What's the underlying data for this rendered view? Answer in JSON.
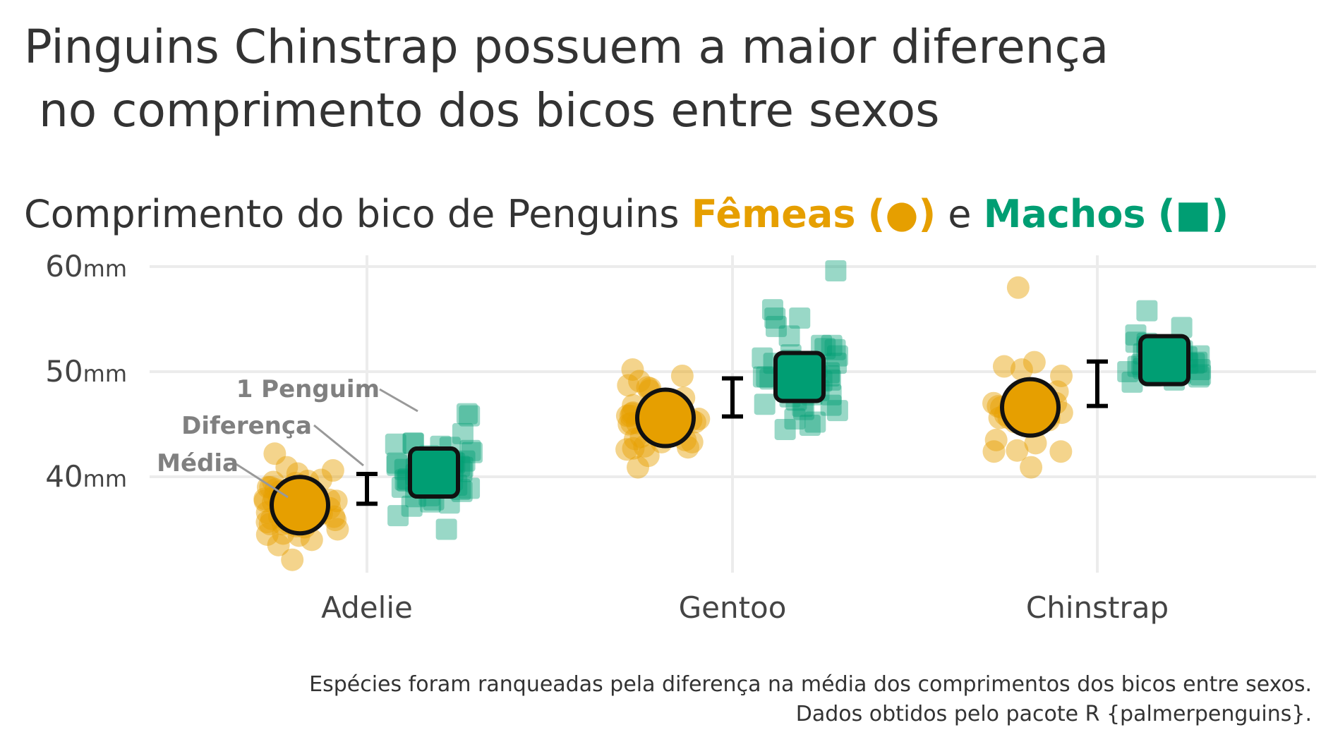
{
  "title_line1": "Pinguins Chinstrap possuem a maior diferença",
  "title_line2": " no comprimento dos bicos entre sexos",
  "subtitle": {
    "prefix": "Comprimento do bico de Penguins ",
    "female_label": "Fêmeas",
    "female_symbol": "(●)",
    "conj": " e ",
    "male_label": "Machos",
    "male_symbol": "(■)"
  },
  "caption_line1": "Espécies foram ranqueadas pela diferença na média dos comprimentos dos bicos entre sexos.",
  "caption_line2": "Dados obtidos pelo pacote R {palmerpenguins}.",
  "chart_data": {
    "type": "scatter",
    "categories": [
      "Adelie",
      "Gentoo",
      "Chinstrap"
    ],
    "ylim": [
      31,
      61
    ],
    "yticks": [
      40,
      50,
      60
    ],
    "ytick_unit": "mm",
    "grid": true,
    "colors": {
      "female": "#E69F00",
      "male": "#009E73"
    },
    "annotations": [
      "1 Penguim",
      "Diferença",
      "Média"
    ],
    "means": {
      "female": [
        37.3,
        45.6,
        46.6
      ],
      "male": [
        40.4,
        49.5,
        51.1
      ]
    },
    "series": [
      {
        "name": "Fêmeas",
        "points": {
          "Adelie": [
            37.0,
            36.2,
            35.5,
            38.6,
            39.4,
            35.9,
            36.6,
            37.8,
            38.4,
            36.8,
            34.6,
            36.5,
            36.9,
            35.7,
            38.1,
            37.2,
            37.3,
            39.5,
            35.2,
            34.4,
            42.2,
            37.7,
            36.2,
            37.7,
            39.0,
            36.0,
            35.9,
            38.8,
            35.7,
            36.4,
            37.2,
            35.5,
            38.1,
            35.0,
            36.0,
            37.8,
            36.4,
            40.9,
            37.6,
            39.7,
            37.3,
            35.6,
            34.5,
            40.6,
            38.1,
            37.0,
            40.3,
            36.2,
            39.6,
            32.1,
            36.7,
            34.0,
            36.0,
            33.5,
            35.3,
            39.0,
            37.9,
            36.2
          ],
          "Gentoo": [
            46.1,
            48.7,
            46.5,
            45.4,
            43.3,
            40.9,
            45.5,
            45.8,
            42.0,
            46.2,
            45.1,
            46.5,
            42.9,
            48.2,
            42.8,
            45.1,
            49.1,
            42.6,
            44.0,
            42.7,
            45.3,
            43.6,
            45.5,
            44.9,
            45.8,
            43.5,
            43.3,
            47.5,
            46.2,
            45.5,
            49.6,
            46.4,
            48.5,
            45.7,
            50.2,
            45.2,
            46.8,
            46.0,
            43.8,
            48.4,
            45.0
          ],
          "Chinstrap": [
            46.5,
            45.4,
            45.2,
            46.1,
            46.0,
            46.6,
            47.0,
            45.9,
            58.0,
            46.4,
            42.4,
            43.2,
            46.7,
            50.5,
            46.9,
            46.2,
            45.5,
            40.9,
            42.5,
            47.0,
            43.5,
            45.7,
            45.7,
            50.9,
            49.6,
            45.6,
            46.8,
            45.6,
            50.2,
            42.4,
            46.6,
            46.9,
            48.1
          ]
        }
      },
      {
        "name": "Machos",
        "points": {
          "Adelie": [
            39.1,
            39.3,
            38.9,
            39.2,
            42.0,
            37.8,
            38.2,
            38.8,
            40.6,
            41.1,
            39.5,
            43.2,
            41.4,
            39.7,
            40.8,
            41.3,
            40.5,
            42.5,
            46.0,
            38.6,
            40.6,
            39.2,
            40.7,
            41.3,
            39.6,
            39.7,
            37.2,
            40.1,
            40.7,
            39.7,
            40.2,
            45.8,
            43.1,
            40.6,
            42.9,
            40.8,
            39.0,
            42.3,
            37.6,
            44.1,
            40.8,
            38.9,
            40.7,
            39.2,
            41.5,
            38.1,
            41.1,
            39.6,
            42.8,
            37.5,
            35.0,
            40.9,
            43.2,
            41.0,
            39.8,
            36.3
          ],
          "Gentoo": [
            50.0,
            50.0,
            47.6,
            46.7,
            46.8,
            49.0,
            48.4,
            49.3,
            49.2,
            48.7,
            50.2,
            47.8,
            50.0,
            47.3,
            59.6,
            49.6,
            50.5,
            50.5,
            45.2,
            49.1,
            52.5,
            50.4,
            46.3,
            44.9,
            52.2,
            45.5,
            49.5,
            50.8,
            46.4,
            48.6,
            51.1,
            48.2,
            52.5,
            55.1,
            48.8,
            49.9,
            50.4,
            46.9,
            53.4,
            49.0,
            51.5,
            47.8,
            55.9,
            49.8,
            50.8,
            54.3,
            49.4,
            44.5,
            51.3,
            52.1,
            48.7,
            49.5,
            51.6,
            55.1,
            49.8
          ],
          "Chinstrap": [
            50.0,
            51.3,
            52.7,
            51.3,
            51.7,
            52.0,
            50.5,
            50.3,
            49.2,
            50.8,
            51.5,
            52.2,
            49.5,
            50.8,
            52.0,
            49.0,
            50.7,
            52.8,
            54.2,
            51.0,
            49.7,
            55.8,
            49.6,
            50.8,
            50.5,
            50.9,
            50.1,
            51.4,
            51.9,
            52.4,
            50.7,
            53.5,
            49.8,
            50.2
          ]
        }
      }
    ]
  }
}
